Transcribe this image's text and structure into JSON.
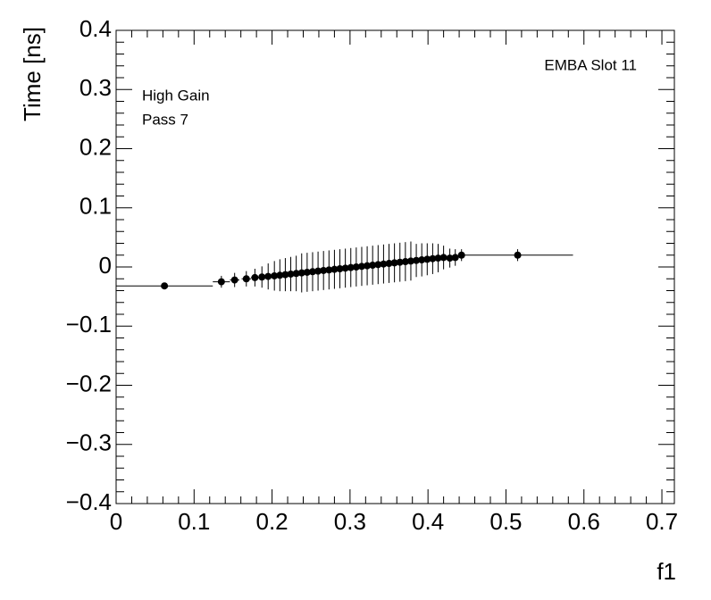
{
  "chart_data": {
    "type": "errorbar",
    "annotations": [
      "EMBA Slot 11",
      "High Gain",
      "Pass 7"
    ],
    "xlabel": "f1",
    "ylabel": "Time [ns]",
    "color": "#000000",
    "x": [
      0.062,
      0.135,
      0.152,
      0.167,
      0.178,
      0.187,
      0.195,
      0.203,
      0.21,
      0.217,
      0.224,
      0.231,
      0.238,
      0.245,
      0.252,
      0.259,
      0.266,
      0.273,
      0.28,
      0.287,
      0.294,
      0.301,
      0.308,
      0.315,
      0.322,
      0.329,
      0.336,
      0.343,
      0.35,
      0.357,
      0.364,
      0.371,
      0.378,
      0.385,
      0.392,
      0.399,
      0.406,
      0.413,
      0.42,
      0.428,
      0.435,
      0.443,
      0.515
    ],
    "values": [
      -0.032,
      -0.025,
      -0.022,
      -0.02,
      -0.018,
      -0.017,
      -0.016,
      -0.015,
      -0.014,
      -0.013,
      -0.012,
      -0.011,
      -0.01,
      -0.009,
      -0.008,
      -0.007,
      -0.006,
      -0.005,
      -0.004,
      -0.003,
      -0.002,
      -0.001,
      0.0,
      0.001,
      0.002,
      0.003,
      0.004,
      0.005,
      0.006,
      0.007,
      0.008,
      0.009,
      0.01,
      0.011,
      0.012,
      0.013,
      0.014,
      0.015,
      0.016,
      0.015,
      0.016,
      0.02,
      0.02
    ],
    "yerr": [
      0.004,
      0.01,
      0.012,
      0.013,
      0.015,
      0.018,
      0.022,
      0.025,
      0.027,
      0.028,
      0.029,
      0.03,
      0.033,
      0.033,
      0.033,
      0.033,
      0.033,
      0.033,
      0.033,
      0.033,
      0.033,
      0.033,
      0.033,
      0.033,
      0.033,
      0.033,
      0.033,
      0.033,
      0.033,
      0.033,
      0.033,
      0.033,
      0.033,
      0.028,
      0.028,
      0.027,
      0.026,
      0.024,
      0.02,
      0.016,
      0.014,
      0.01,
      0.01
    ],
    "xerr": [
      0.062,
      0.011,
      0.006,
      0.006,
      0.005,
      0.004,
      0.004,
      0.004,
      0.0035,
      0.0035,
      0.0035,
      0.0035,
      0.0035,
      0.0035,
      0.0035,
      0.0035,
      0.0035,
      0.0035,
      0.0035,
      0.0035,
      0.0035,
      0.0035,
      0.0035,
      0.0035,
      0.0035,
      0.0035,
      0.0035,
      0.0035,
      0.0035,
      0.0035,
      0.0035,
      0.0035,
      0.0035,
      0.0035,
      0.0035,
      0.0035,
      0.0035,
      0.0035,
      0.0035,
      0.004,
      0.004,
      0.004,
      0.071
    ],
    "xlim": [
      0,
      0.716
    ],
    "ylim": [
      -0.4,
      0.4
    ],
    "xticks": [
      0,
      0.1,
      0.2,
      0.3,
      0.4,
      0.5,
      0.6,
      0.7
    ],
    "yticks": [
      {
        "value": -0.4,
        "label": "−0.4"
      },
      {
        "value": -0.3,
        "label": "−0.3"
      },
      {
        "value": -0.2,
        "label": "−0.2"
      },
      {
        "value": -0.1,
        "label": "−0.1"
      },
      0,
      0.1,
      0.2,
      0.3,
      0.4
    ]
  }
}
